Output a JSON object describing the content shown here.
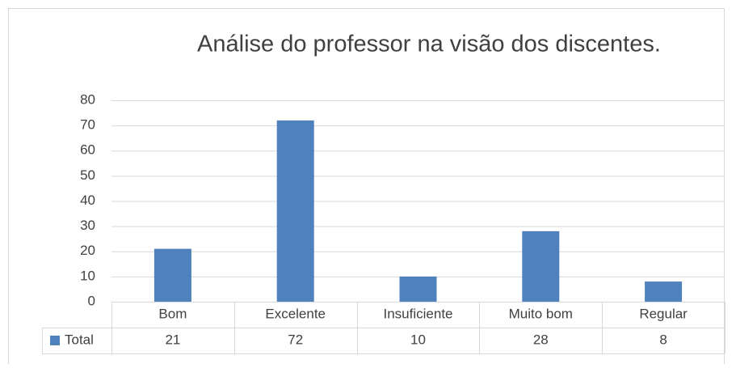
{
  "chart_data": {
    "type": "bar",
    "title": "Análise do professor na visão dos discentes.",
    "categories": [
      "Bom",
      "Excelente",
      "Insuficiente",
      "Muito bom",
      "Regular"
    ],
    "series": [
      {
        "name": "Total",
        "color": "#4f81bd",
        "values": [
          21,
          72,
          10,
          28,
          8
        ]
      }
    ],
    "ylim": [
      0,
      80
    ],
    "yticks": [
      0,
      10,
      20,
      30,
      40,
      50,
      60,
      70,
      80
    ],
    "grid": true,
    "data_table": true
  }
}
